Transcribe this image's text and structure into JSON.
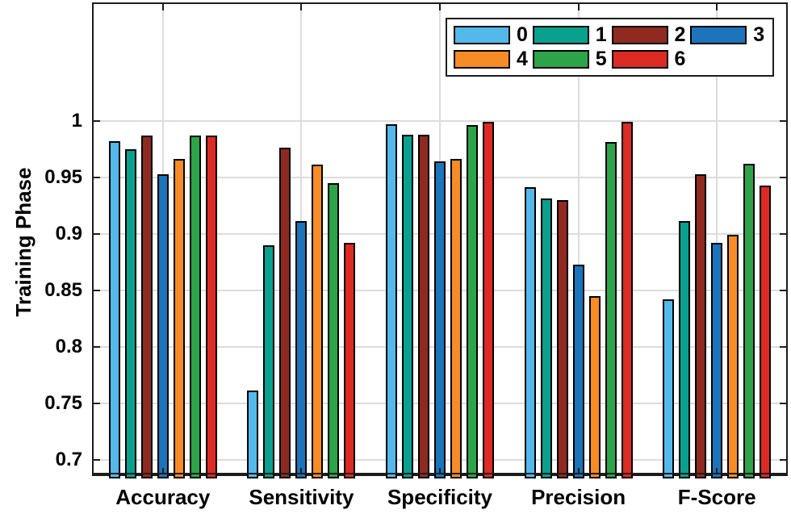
{
  "chart_data": {
    "type": "bar",
    "title": "",
    "xlabel": "",
    "ylabel": "Training Phase",
    "categories": [
      "Accuracy",
      "Sensitivity",
      "Specificity",
      "Precision",
      "F-Score"
    ],
    "series": [
      {
        "name": "0",
        "color": "#54B9EA",
        "values": [
          0.982,
          0.761,
          0.997,
          0.941,
          0.842
        ]
      },
      {
        "name": "1",
        "color": "#09A08D",
        "values": [
          0.975,
          0.89,
          0.988,
          0.931,
          0.911
        ]
      },
      {
        "name": "2",
        "color": "#8F2A20",
        "values": [
          0.987,
          0.976,
          0.988,
          0.93,
          0.953
        ]
      },
      {
        "name": "3",
        "color": "#1C74BA",
        "values": [
          0.953,
          0.911,
          0.964,
          0.873,
          0.892
        ]
      },
      {
        "name": "4",
        "color": "#F78C26",
        "values": [
          0.966,
          0.961,
          0.966,
          0.845,
          0.899
        ]
      },
      {
        "name": "5",
        "color": "#2DA449",
        "values": [
          0.987,
          0.945,
          0.996,
          0.981,
          0.962
        ]
      },
      {
        "name": "6",
        "color": "#DC2A25",
        "values": [
          0.987,
          0.892,
          0.999,
          0.999,
          0.943
        ]
      }
    ],
    "yticks": [
      0.7,
      0.75,
      0.8,
      0.85,
      0.9,
      0.95,
      1
    ],
    "ytick_labels": [
      "0.7",
      "0.75",
      "0.8",
      "0.85",
      "0.9",
      "0.95",
      "1"
    ],
    "ylim": [
      0.687,
      1.1035
    ],
    "grid": true,
    "legend_position": "top-right",
    "legend_columns": 4
  },
  "style_colors": {
    "axis": "#1c1c1c",
    "grid": "#dcdcdc",
    "bar_edge": "#000000",
    "text": "#000000",
    "background": "#ffffff"
  }
}
